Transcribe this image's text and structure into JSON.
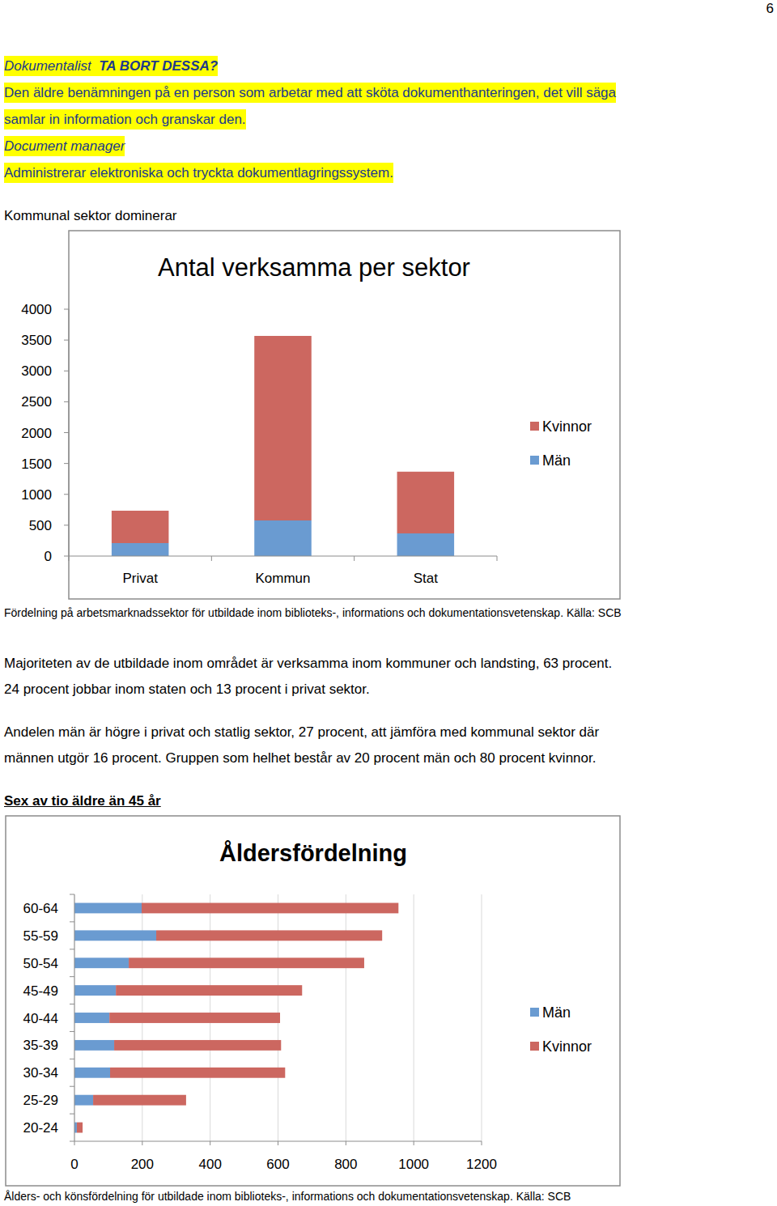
{
  "document": {
    "page_number": "6",
    "highlighted": [
      [
        {
          "text": "Dokumentalist",
          "style": "italic"
        },
        {
          "text": "  TA BORT DESSA?",
          "style": "bold-italic"
        }
      ],
      [
        {
          "text": "Den äldre benämningen på en person som arbetar med att sköta dokumenthanteringen, det vill säga",
          "style": "normal"
        }
      ],
      [
        {
          "text": "samlar in information och granskar den.",
          "style": "normal"
        }
      ],
      [
        {
          "text": "Document manager",
          "style": "italic"
        }
      ],
      [
        {
          "text": "Administrerar elektroniska och tryckta dokumentlagringssystem.",
          "style": "normal"
        }
      ]
    ],
    "heading1": "Kommunal sektor dominerar",
    "caption1": "Fördelning på arbetsmarknadssektor för utbildade inom biblioteks-, informations och dokumentationsvetenskap. Källa: SCB",
    "paragraphs": [
      [
        "Majoriteten av de utbildade inom området är verksamma inom kommuner och landsting, 63 procent.",
        "24 procent jobbar inom staten och 13 procent i privat sektor."
      ],
      [
        "Andelen män är högre i privat och statlig sektor, 27 procent, att jämföra med kommunal sektor där",
        "männen utgör 16 procent. Gruppen som helhet består av 20 procent män och 80 procent kvinnor."
      ]
    ],
    "heading2": "Sex av tio äldre än 45 år",
    "caption2": "Ålders- och könsfördelning för utbildade inom biblioteks-, informations och dokumentationsvetenskap. Källa: SCB"
  },
  "chart_data": [
    {
      "type": "bar",
      "title": "Antal verksamma per sektor",
      "categories": [
        "Privat",
        "Kommun",
        "Stat"
      ],
      "series": [
        {
          "name": "Män",
          "color": "#6a9bd1",
          "values": [
            210,
            577,
            367
          ]
        },
        {
          "name": "Kvinnor",
          "color": "#cc6760",
          "values": [
            525,
            2990,
            1000
          ]
        }
      ],
      "stacked": true,
      "ylim": [
        0,
        4000
      ],
      "yticks": [
        0,
        500,
        1000,
        1500,
        2000,
        2500,
        3000,
        3500,
        4000
      ],
      "grid": false,
      "legend": "right"
    },
    {
      "type": "bar",
      "title": "Åldersfördelning",
      "orientation": "horizontal",
      "categories": [
        "20-24",
        "25-29",
        "30-34",
        "35-39",
        "40-44",
        "45-49",
        "50-54",
        "55-59",
        "60-64"
      ],
      "series": [
        {
          "name": "Män",
          "color": "#6a9bd1",
          "values": [
            7,
            55,
            105,
            117,
            103,
            122,
            160,
            241,
            198
          ]
        },
        {
          "name": "Kvinnor",
          "color": "#cc6760",
          "values": [
            17,
            274,
            516,
            492,
            503,
            549,
            694,
            666,
            757
          ]
        }
      ],
      "stacked": true,
      "xlim": [
        0,
        1200
      ],
      "xticks": [
        0,
        200,
        400,
        600,
        800,
        1000,
        1200
      ],
      "grid": true,
      "legend": "right"
    }
  ]
}
